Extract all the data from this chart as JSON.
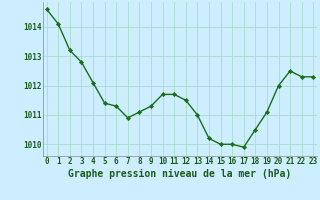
{
  "x": [
    0,
    1,
    2,
    3,
    4,
    5,
    6,
    7,
    8,
    9,
    10,
    11,
    12,
    13,
    14,
    15,
    16,
    17,
    18,
    19,
    20,
    21,
    22,
    23
  ],
  "y": [
    1014.6,
    1014.1,
    1013.2,
    1012.8,
    1012.1,
    1011.4,
    1011.3,
    1010.9,
    1011.1,
    1011.3,
    1011.7,
    1011.7,
    1011.5,
    1011.0,
    1010.2,
    1010.0,
    1010.0,
    1009.9,
    1010.5,
    1011.1,
    1012.0,
    1012.5,
    1012.3,
    1012.3
  ],
  "line_color": "#1a6e1a",
  "marker": "D",
  "marker_size": 2.2,
  "bg_color": "#cceeff",
  "grid_color": "#aaddcc",
  "xlabel": "Graphe pression niveau de la mer (hPa)",
  "xlabel_color": "#1a5c1a",
  "xlabel_fontsize": 7.0,
  "yticks": [
    1010,
    1011,
    1012,
    1013,
    1014
  ],
  "xticks": [
    0,
    1,
    2,
    3,
    4,
    5,
    6,
    7,
    8,
    9,
    10,
    11,
    12,
    13,
    14,
    15,
    16,
    17,
    18,
    19,
    20,
    21,
    22,
    23
  ],
  "ylim": [
    1009.6,
    1014.85
  ],
  "xlim": [
    -0.3,
    23.3
  ],
  "tick_color": "#1a5c1a",
  "tick_fontsize": 5.5,
  "line_width": 1.0
}
